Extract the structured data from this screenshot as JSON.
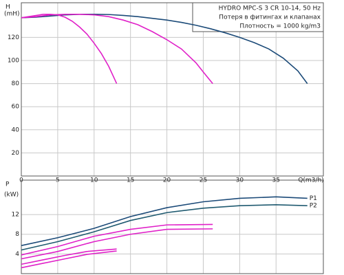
{
  "chart_data": [
    {
      "type": "line",
      "y_label": "H",
      "y_unit": "(mH)",
      "x_label": "Q(m3/h)",
      "legend_lines": [
        "HYDRO MPC-S 3 CR 10-14, 50 Hz",
        "Потеря в фитингах и клапанах",
        "Плотность = 1000 kg/m3"
      ],
      "xlim": [
        0,
        41.5
      ],
      "xticks": [
        0,
        5,
        10,
        15,
        20,
        25,
        30,
        35
      ],
      "ylim": [
        0,
        150
      ],
      "yticks": [
        20,
        40,
        60,
        80,
        100,
        120
      ],
      "grid": true,
      "series": [
        {
          "color": "#1b4a78",
          "x": [
            0,
            2,
            4,
            6,
            8,
            10,
            12,
            14,
            16,
            18,
            20,
            22,
            24,
            26,
            28,
            30,
            32,
            34,
            36,
            38,
            39.3
          ],
          "values": [
            137,
            137.5,
            138.5,
            139.5,
            140,
            140,
            139.8,
            139,
            138,
            136.5,
            135,
            133,
            130.5,
            127.5,
            124,
            120,
            115.5,
            110,
            102,
            91,
            80
          ]
        },
        {
          "color": "#e020c8",
          "x": [
            0,
            2,
            4,
            6,
            8,
            10,
            12,
            14,
            16,
            18,
            20,
            22,
            24,
            25,
            26.3
          ],
          "values": [
            137,
            138,
            139.5,
            140,
            140,
            139.5,
            138,
            135,
            131,
            125,
            118,
            110,
            98,
            90,
            80
          ]
        },
        {
          "color": "#e020c8",
          "x": [
            0,
            2,
            3,
            4,
            5,
            6,
            7,
            8,
            9,
            10,
            11,
            12,
            13.1
          ],
          "values": [
            137,
            139,
            140,
            140,
            139.5,
            137.5,
            134,
            129,
            123,
            115,
            106,
            95,
            80
          ]
        }
      ]
    },
    {
      "type": "line",
      "y_label": "P",
      "y_unit": "(kW)",
      "xlim": [
        0,
        41.5
      ],
      "ylim": [
        0,
        19
      ],
      "yticks": [
        4,
        8,
        12
      ],
      "grid": true,
      "series": [
        {
          "name": "P1",
          "color": "#1b4a78",
          "x": [
            0,
            5,
            10,
            15,
            20,
            25,
            30,
            35,
            39.3
          ],
          "values": [
            5.7,
            7.3,
            9.2,
            11.6,
            13.4,
            14.6,
            15.3,
            15.6,
            15.3
          ]
        },
        {
          "name": "P2",
          "color": "#1f5a70",
          "x": [
            0,
            5,
            10,
            15,
            20,
            25,
            30,
            35,
            39.3
          ],
          "values": [
            4.8,
            6.5,
            8.5,
            10.8,
            12.4,
            13.3,
            13.8,
            14.0,
            13.8
          ]
        },
        {
          "color": "#e020c8",
          "x": [
            0,
            5,
            10,
            15,
            20,
            26.3
          ],
          "values": [
            3.8,
            5.5,
            7.6,
            9.0,
            9.9,
            10.0
          ]
        },
        {
          "color": "#e020c8",
          "x": [
            0,
            5,
            10,
            15,
            20,
            26.3
          ],
          "values": [
            3.0,
            4.5,
            6.5,
            8.0,
            9.0,
            9.1
          ]
        },
        {
          "color": "#e020c8",
          "x": [
            0,
            3,
            6,
            9,
            13.1
          ],
          "values": [
            1.9,
            2.8,
            3.7,
            4.5,
            5.0
          ]
        },
        {
          "color": "#e020c8",
          "x": [
            0,
            3,
            6,
            9,
            13.1
          ],
          "values": [
            1.2,
            2.1,
            3.0,
            3.9,
            4.6
          ]
        }
      ]
    }
  ]
}
